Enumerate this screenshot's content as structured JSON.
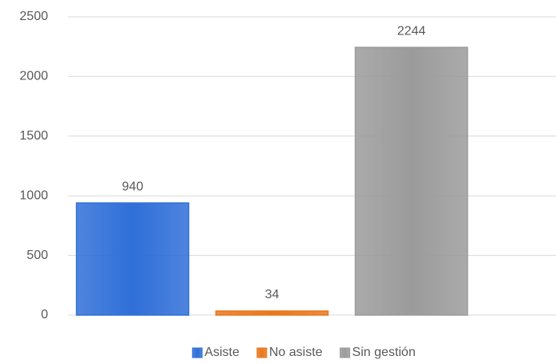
{
  "chart_data": {
    "type": "bar",
    "categories": [
      null
    ],
    "series": [
      {
        "name": "Asiste",
        "color": "#2f6fd8",
        "values": [
          940
        ]
      },
      {
        "name": "No asiste",
        "color": "#e8781e",
        "values": [
          34
        ]
      },
      {
        "name": "Sin gestión",
        "color": "#9b9b9b",
        "values": [
          2244
        ]
      }
    ],
    "ylim": [
      0,
      2500
    ],
    "yticks": [
      0,
      500,
      1000,
      1500,
      2000,
      2500
    ],
    "grid": true,
    "legend": "bottom"
  }
}
